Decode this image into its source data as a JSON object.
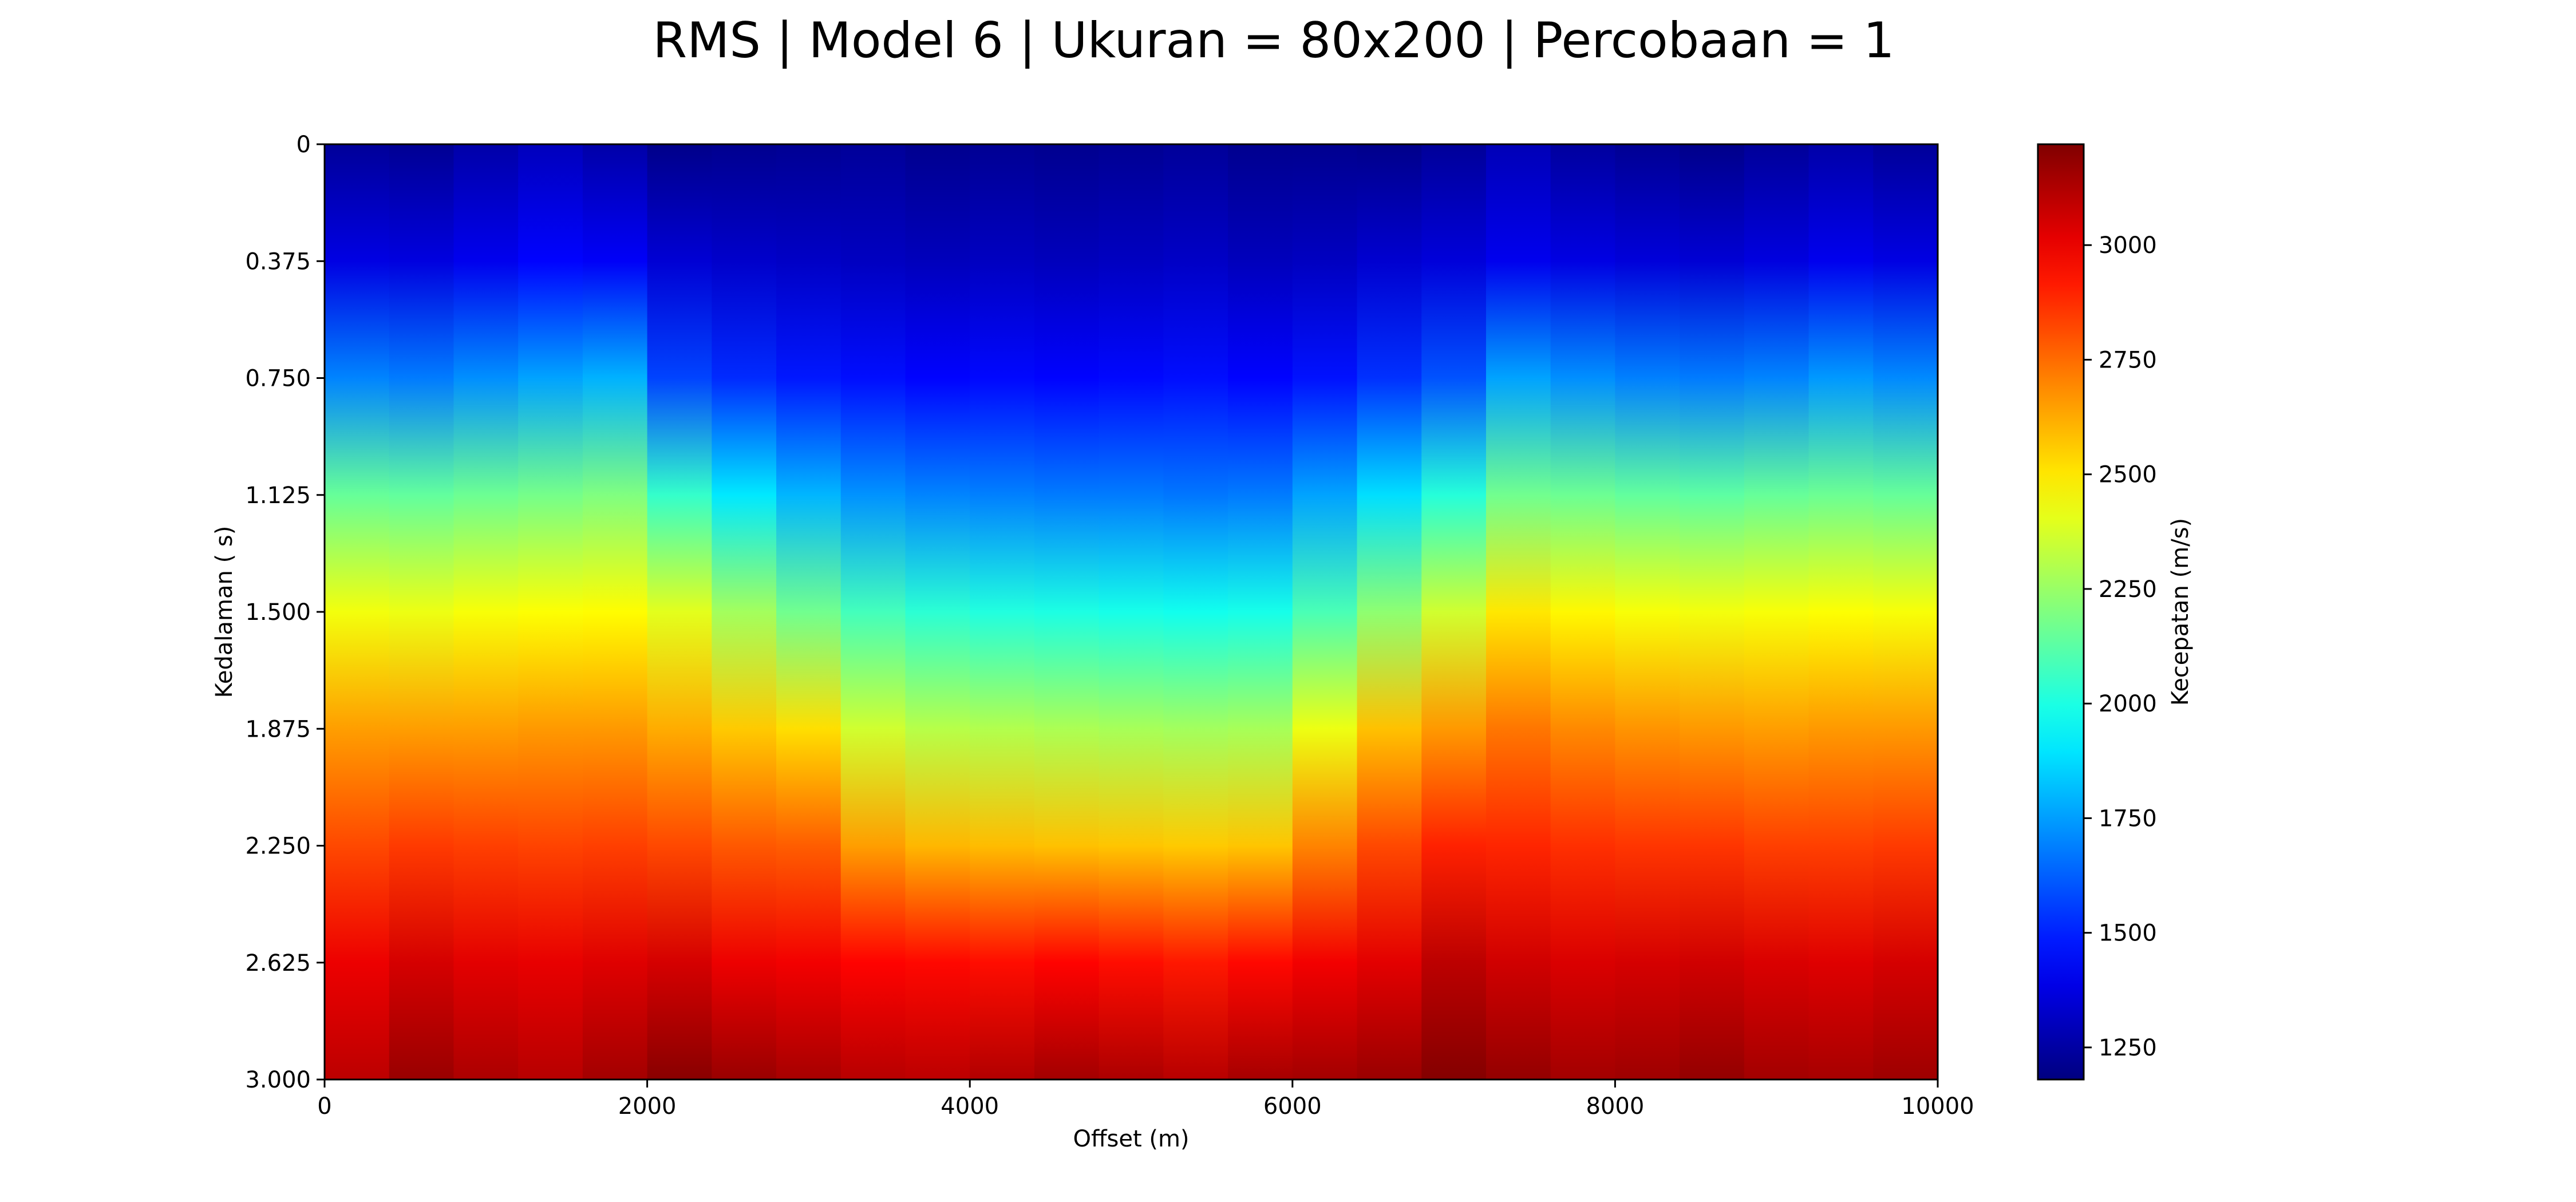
{
  "chart_data": {
    "type": "heatmap",
    "title": "RMS | Model 6 | Ukuran = 80x200 | Percobaan = 1",
    "xlabel": "Offset (m)",
    "ylabel": "Kedalaman ( s)",
    "colorbar_label": "Kecepatan (m/s)",
    "colormap": "jet",
    "xlim": [
      0,
      10000
    ],
    "ylim": [
      3.0,
      0
    ],
    "clim": [
      1180,
      3220
    ],
    "x_ticks": [
      "0",
      "2000",
      "4000",
      "6000",
      "8000",
      "10000"
    ],
    "x_tick_values": [
      0,
      2000,
      4000,
      6000,
      8000,
      10000
    ],
    "y_ticks": [
      "0",
      "0.375",
      "0.750",
      "1.125",
      "1.500",
      "1.875",
      "2.250",
      "2.625",
      "3.000"
    ],
    "y_tick_values": [
      0,
      0.375,
      0.75,
      1.125,
      1.5,
      1.875,
      2.25,
      2.625,
      3.0
    ],
    "colorbar_ticks": [
      "1250",
      "1500",
      "1750",
      "2000",
      "2250",
      "2500",
      "2750",
      "3000"
    ],
    "colorbar_tick_values": [
      1250,
      1500,
      1750,
      2000,
      2250,
      2500,
      2750,
      3000
    ],
    "depth_samples": [
      0,
      0.375,
      0.75,
      1.125,
      1.5,
      1.875,
      2.25,
      2.625,
      3.0
    ],
    "columns": [
      {
        "x_start": 0,
        "x_end": 400,
        "values": [
          1230,
          1380,
          1700,
          2150,
          2430,
          2650,
          2820,
          3000,
          3100
        ]
      },
      {
        "x_start": 400,
        "x_end": 800,
        "values": [
          1220,
          1370,
          1680,
          2140,
          2420,
          2650,
          2850,
          3050,
          3170
        ]
      },
      {
        "x_start": 800,
        "x_end": 1200,
        "values": [
          1260,
          1400,
          1720,
          2160,
          2440,
          2650,
          2840,
          3020,
          3130
        ]
      },
      {
        "x_start": 1200,
        "x_end": 1600,
        "values": [
          1300,
          1440,
          1760,
          2180,
          2450,
          2660,
          2830,
          3010,
          3110
        ]
      },
      {
        "x_start": 1600,
        "x_end": 2000,
        "values": [
          1260,
          1420,
          1790,
          2200,
          2460,
          2660,
          2840,
          3030,
          3150
        ]
      },
      {
        "x_start": 2000,
        "x_end": 2400,
        "values": [
          1200,
          1350,
          1570,
          2050,
          2400,
          2620,
          2820,
          3050,
          3200
        ]
      },
      {
        "x_start": 2400,
        "x_end": 2800,
        "values": [
          1210,
          1330,
          1520,
          1900,
          2270,
          2560,
          2790,
          3000,
          3170
        ]
      },
      {
        "x_start": 2800,
        "x_end": 3200,
        "values": [
          1220,
          1320,
          1480,
          1800,
          2170,
          2520,
          2780,
          2990,
          3140
        ]
      },
      {
        "x_start": 3200,
        "x_end": 3600,
        "values": [
          1230,
          1310,
          1460,
          1730,
          2080,
          2360,
          2650,
          2960,
          3110
        ]
      },
      {
        "x_start": 3600,
        "x_end": 4000,
        "values": [
          1210,
          1300,
          1440,
          1700,
          2030,
          2310,
          2600,
          2950,
          3100
        ]
      },
      {
        "x_start": 4000,
        "x_end": 4400,
        "values": [
          1220,
          1310,
          1450,
          1690,
          2010,
          2300,
          2590,
          2940,
          3120
        ]
      },
      {
        "x_start": 4400,
        "x_end": 4800,
        "values": [
          1210,
          1300,
          1440,
          1680,
          2000,
          2290,
          2580,
          2960,
          3150
        ]
      },
      {
        "x_start": 4800,
        "x_end": 5200,
        "values": [
          1220,
          1310,
          1450,
          1680,
          1990,
          2280,
          2570,
          2940,
          3130
        ]
      },
      {
        "x_start": 5200,
        "x_end": 5600,
        "values": [
          1230,
          1320,
          1460,
          1670,
          1980,
          2270,
          2560,
          2920,
          3110
        ]
      },
      {
        "x_start": 5600,
        "x_end": 6000,
        "values": [
          1210,
          1300,
          1440,
          1680,
          1990,
          2280,
          2570,
          2950,
          3140
        ]
      },
      {
        "x_start": 6000,
        "x_end": 6400,
        "values": [
          1210,
          1310,
          1470,
          1760,
          2090,
          2420,
          2700,
          2990,
          3150
        ]
      },
      {
        "x_start": 6400,
        "x_end": 6800,
        "values": [
          1200,
          1340,
          1530,
          1880,
          2230,
          2580,
          2820,
          3020,
          3170
        ]
      },
      {
        "x_start": 6800,
        "x_end": 7200,
        "values": [
          1230,
          1360,
          1600,
          2020,
          2360,
          2660,
          2900,
          3100,
          3210
        ]
      },
      {
        "x_start": 7200,
        "x_end": 7600,
        "values": [
          1290,
          1400,
          1760,
          2170,
          2500,
          2730,
          2890,
          3060,
          3180
        ]
      },
      {
        "x_start": 7600,
        "x_end": 8000,
        "values": [
          1240,
          1380,
          1720,
          2160,
          2470,
          2690,
          2870,
          3040,
          3150
        ]
      },
      {
        "x_start": 8000,
        "x_end": 8400,
        "values": [
          1220,
          1360,
          1690,
          2140,
          2440,
          2670,
          2860,
          3050,
          3160
        ]
      },
      {
        "x_start": 8400,
        "x_end": 8800,
        "values": [
          1200,
          1350,
          1680,
          2130,
          2430,
          2660,
          2860,
          3060,
          3180
        ]
      },
      {
        "x_start": 8800,
        "x_end": 9200,
        "values": [
          1230,
          1370,
          1700,
          2150,
          2440,
          2650,
          2840,
          3040,
          3150
        ]
      },
      {
        "x_start": 9200,
        "x_end": 9600,
        "values": [
          1260,
          1400,
          1740,
          2160,
          2450,
          2660,
          2840,
          3030,
          3140
        ]
      },
      {
        "x_start": 9600,
        "x_end": 10000,
        "values": [
          1230,
          1380,
          1710,
          2150,
          2440,
          2660,
          2850,
          3050,
          3160
        ]
      }
    ]
  }
}
